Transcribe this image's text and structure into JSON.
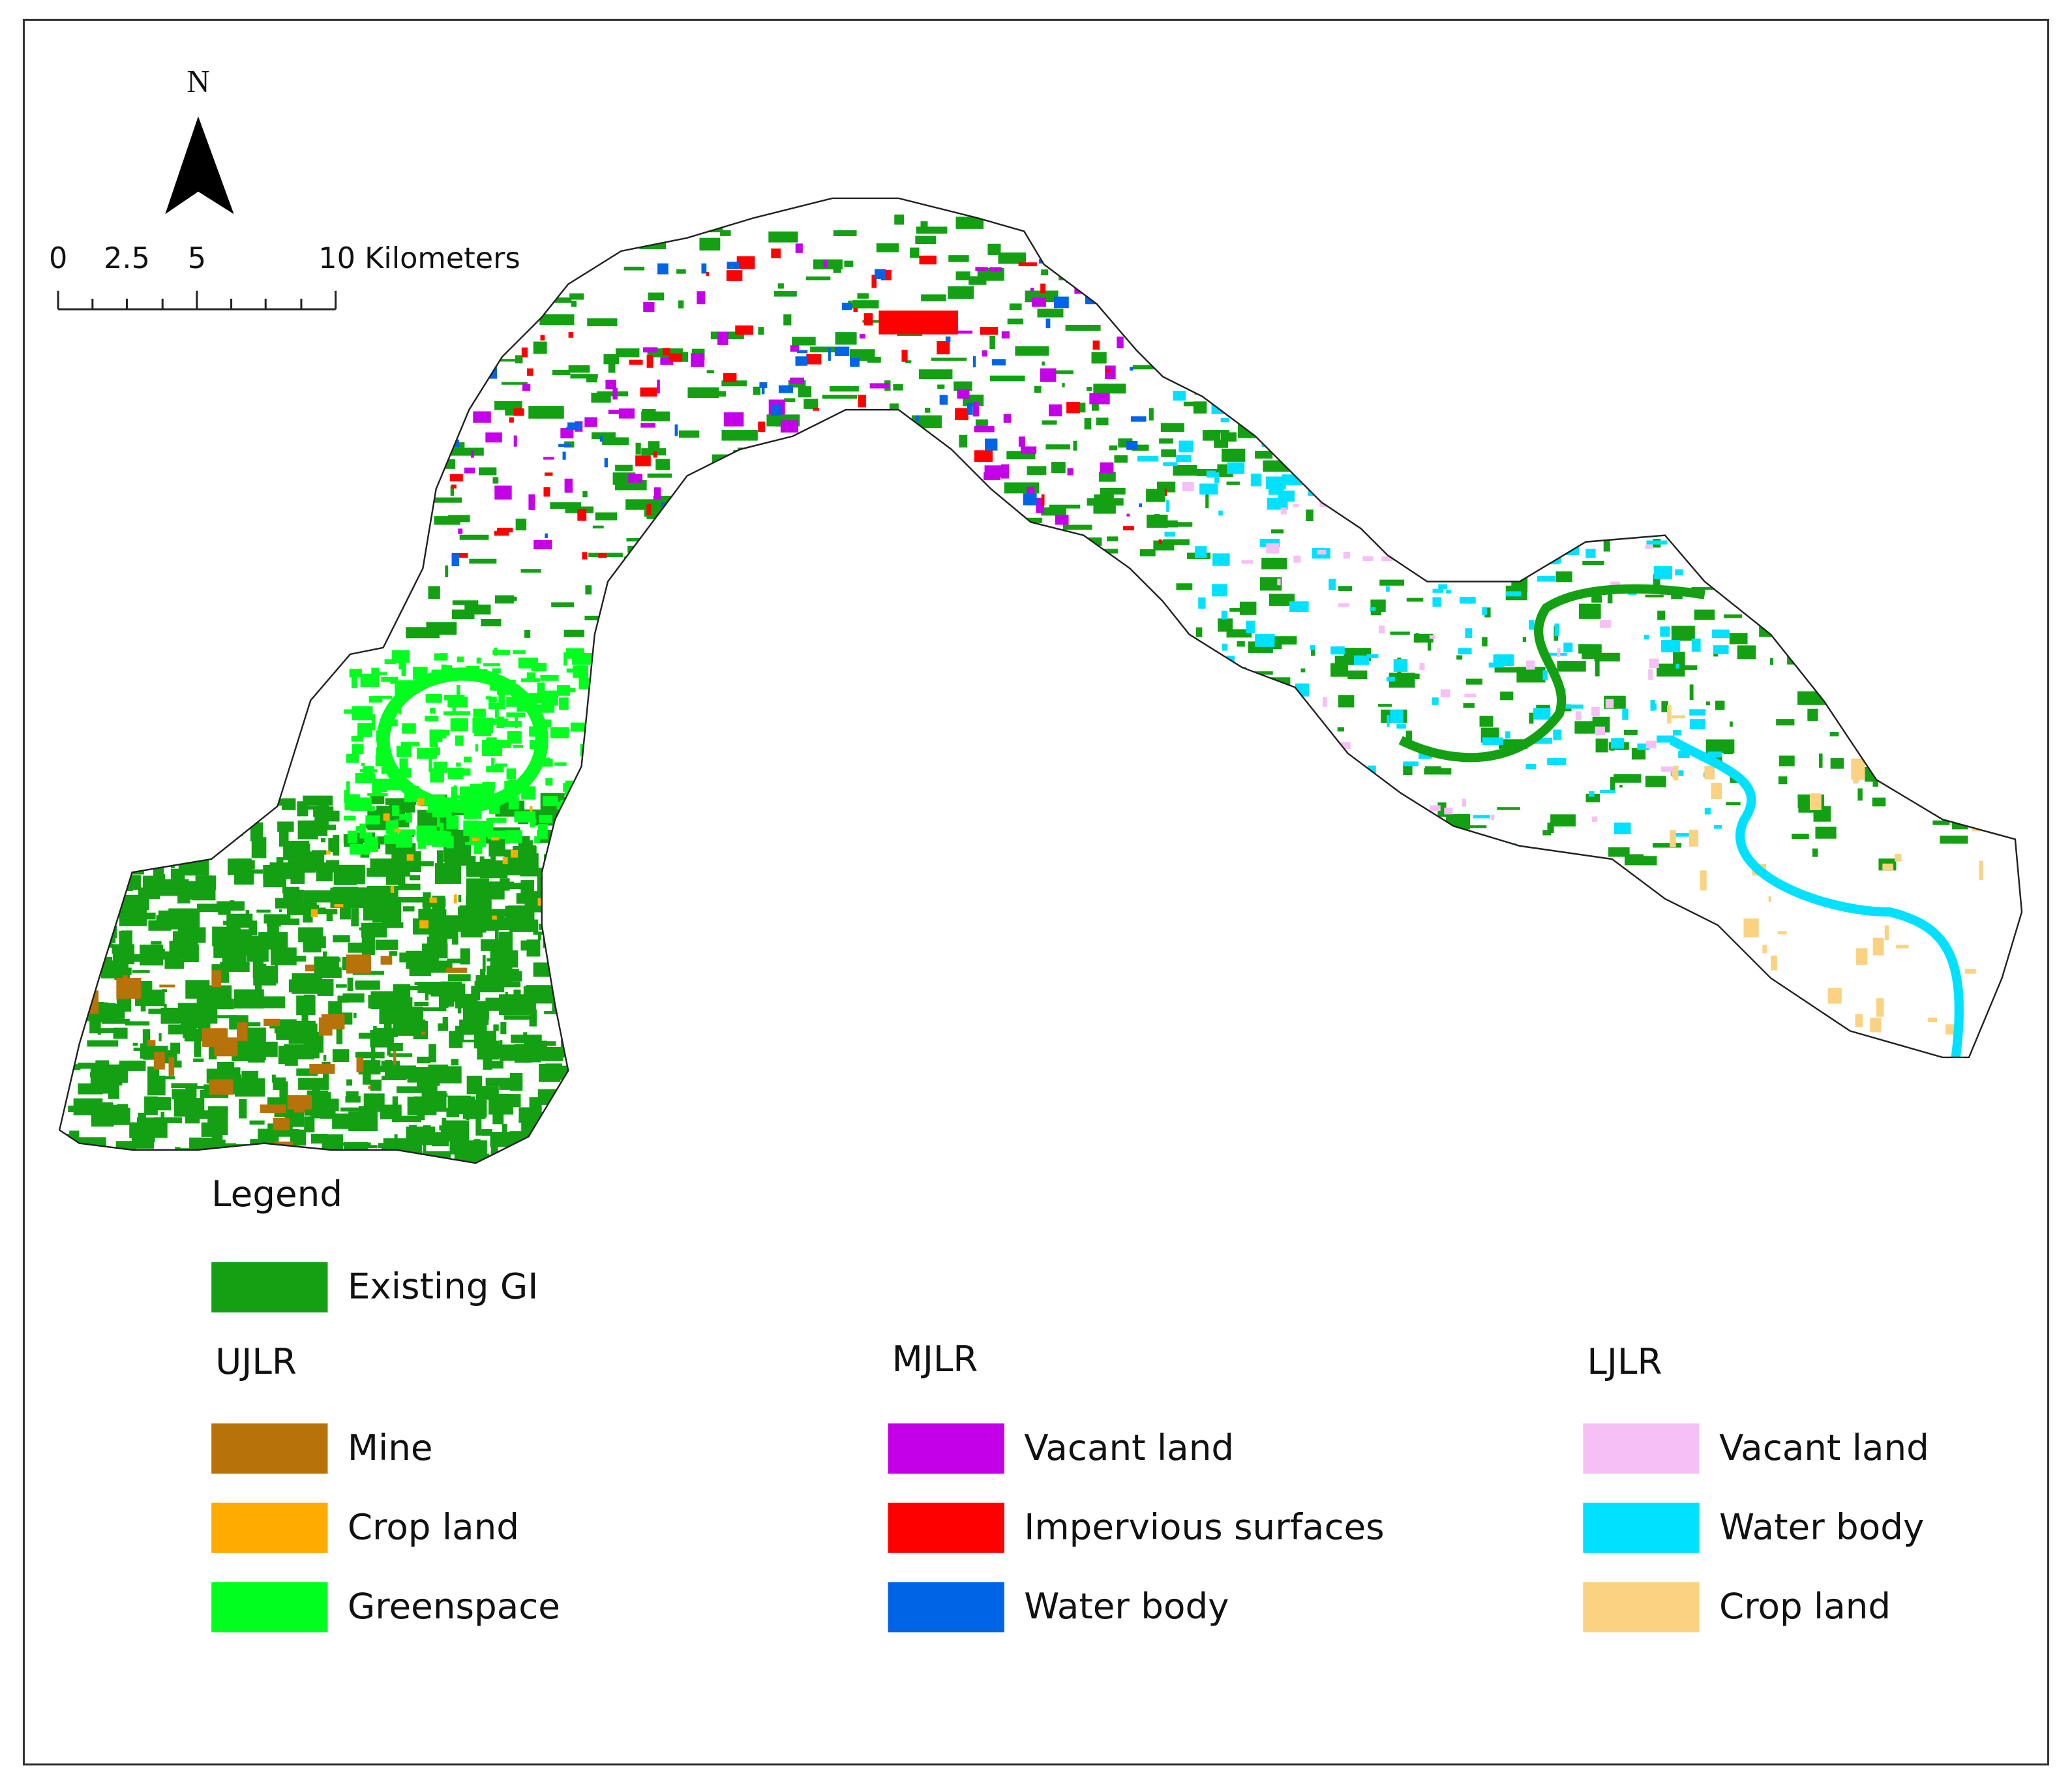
{
  "north": "N",
  "scale_bar": {
    "labels": [
      "0",
      "2.5",
      "5",
      "10 Kilometers"
    ]
  },
  "legend": {
    "title": "Legend",
    "existing": {
      "label": "Existing GI",
      "color": "#13a013"
    },
    "groups": [
      {
        "name": "UJLR",
        "items": [
          {
            "label": "Mine",
            "color": "#b8720a"
          },
          {
            "label": "Crop land",
            "color": "#ffab00"
          },
          {
            "label": "Greenspace",
            "color": "#00ff1e"
          }
        ]
      },
      {
        "name": "MJLR",
        "items": [
          {
            "label": "Vacant land",
            "color": "#c400e8"
          },
          {
            "label": "Impervious surfaces",
            "color": "#ff0000"
          },
          {
            "label": "Water body",
            "color": "#0064e6"
          }
        ]
      },
      {
        "name": "LJLR",
        "items": [
          {
            "label": "Vacant land",
            "color": "#f5c0f5"
          },
          {
            "label": "Water body",
            "color": "#00e1ff"
          },
          {
            "label": "Crop land",
            "color": "#fad282"
          }
        ]
      }
    ]
  }
}
